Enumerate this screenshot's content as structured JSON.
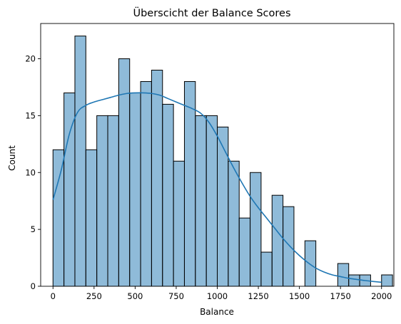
{
  "chart_data": {
    "type": "bar",
    "title": "Überscicht der Balance Scores",
    "xlabel": "Balance",
    "ylabel": "Count",
    "xlim": [
      -75,
      2075
    ],
    "ylim": [
      0,
      23.1
    ],
    "xticks": [
      0,
      250,
      500,
      750,
      1000,
      1250,
      1500,
      1750,
      2000
    ],
    "yticks": [
      0,
      5,
      10,
      15,
      20
    ],
    "bin_start": 0,
    "bin_width": 66.67,
    "counts": [
      12,
      17,
      22,
      12,
      15,
      15,
      20,
      17,
      18,
      19,
      16,
      11,
      18,
      15,
      15,
      14,
      11,
      6,
      10,
      3,
      8,
      7,
      0,
      4,
      0,
      0,
      2,
      1,
      1,
      0,
      1
    ],
    "kde": {
      "x": [
        0,
        50,
        100,
        150,
        200,
        250,
        300,
        350,
        400,
        450,
        500,
        550,
        600,
        650,
        700,
        750,
        800,
        850,
        900,
        950,
        1000,
        1050,
        1100,
        1150,
        1200,
        1250,
        1300,
        1350,
        1400,
        1450,
        1500,
        1550,
        1600,
        1650,
        1700,
        1750,
        1800,
        1850,
        1900,
        1950,
        2000
      ],
      "y": [
        7.6,
        10.2,
        13.4,
        15.3,
        15.9,
        16.2,
        16.4,
        16.6,
        16.8,
        16.95,
        17.0,
        17.0,
        16.95,
        16.8,
        16.5,
        16.2,
        15.9,
        15.6,
        15.2,
        14.4,
        13.2,
        11.8,
        10.4,
        9.1,
        7.9,
        6.9,
        6.0,
        5.1,
        4.2,
        3.4,
        2.7,
        2.1,
        1.6,
        1.25,
        1.0,
        0.85,
        0.7,
        0.6,
        0.5,
        0.42,
        0.35
      ]
    },
    "colors": {
      "bar": "#1f77b4",
      "edge": "#000000",
      "line": "#1f77b4"
    },
    "grid": false,
    "legend": "none"
  }
}
